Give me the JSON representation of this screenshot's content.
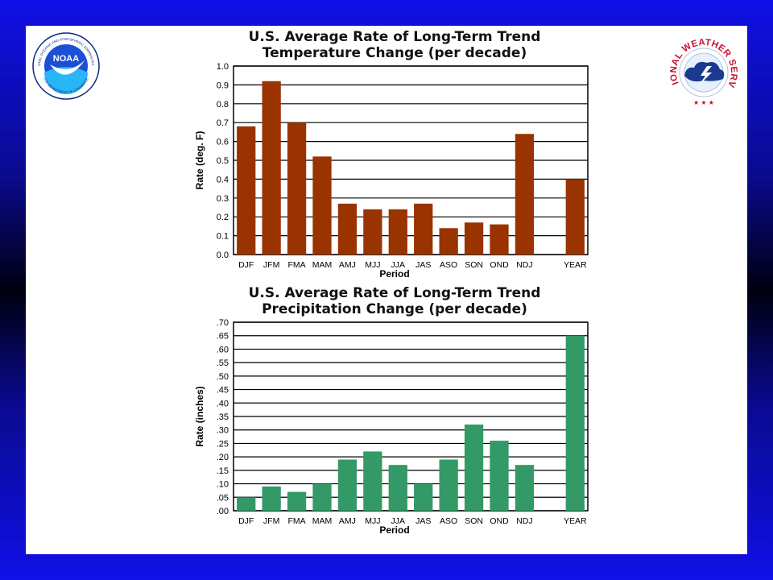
{
  "logos": {
    "noaa": {
      "center_text": "NOAA",
      "ring_text_top": "NATIONAL OCEANIC AND ATMOSPHERIC ADMINISTRATION",
      "ring_text_bottom": "U.S. DEPARTMENT OF COMMERCE"
    },
    "nws": {
      "ring_text": "NATIONAL WEATHER SERVICE",
      "stars": "★ ★ ★"
    }
  },
  "colors": {
    "border_blue": "#1010e8",
    "temperature_bar": "#993300",
    "precipitation_bar": "#339966"
  },
  "chart_data": [
    {
      "type": "bar",
      "title": "U.S. Average Rate of Long-Term Trend",
      "subtitle": "Temperature Change (per decade)",
      "xlabel": "Period",
      "ylabel": "Rate (deg. F)",
      "categories": [
        "DJF",
        "JFM",
        "FMA",
        "MAM",
        "AMJ",
        "MJJ",
        "JJA",
        "JAS",
        "ASO",
        "SON",
        "OND",
        "NDJ",
        "",
        "YEAR"
      ],
      "values": [
        0.68,
        0.92,
        0.7,
        0.52,
        0.27,
        0.24,
        0.24,
        0.27,
        0.14,
        0.17,
        0.16,
        0.64,
        null,
        0.4
      ],
      "ylim": [
        0.0,
        1.0
      ],
      "yticks": [
        "0.0",
        "0.1",
        "0.2",
        "0.3",
        "0.4",
        "0.5",
        "0.6",
        "0.7",
        "0.8",
        "0.9",
        "1.0"
      ],
      "grid": true,
      "legend": "none"
    },
    {
      "type": "bar",
      "title": "U.S. Average Rate of Long-Term Trend",
      "subtitle": "Precipitation Change (per decade)",
      "xlabel": "Period",
      "ylabel": "Rate (inches)",
      "categories": [
        "DJF",
        "JFM",
        "FMA",
        "MAM",
        "AMJ",
        "MJJ",
        "JJA",
        "JAS",
        "ASO",
        "SON",
        "OND",
        "NDJ",
        "",
        "YEAR"
      ],
      "values": [
        0.05,
        0.09,
        0.07,
        0.1,
        0.19,
        0.22,
        0.17,
        0.1,
        0.19,
        0.32,
        0.26,
        0.17,
        null,
        0.65
      ],
      "ylim": [
        0.0,
        0.7
      ],
      "yticks": [
        ".00",
        ".05",
        ".10",
        ".15",
        ".20",
        ".25",
        ".30",
        ".35",
        ".40",
        ".45",
        ".50",
        ".55",
        ".60",
        ".65",
        ".70"
      ],
      "grid": true,
      "legend": "none"
    }
  ]
}
